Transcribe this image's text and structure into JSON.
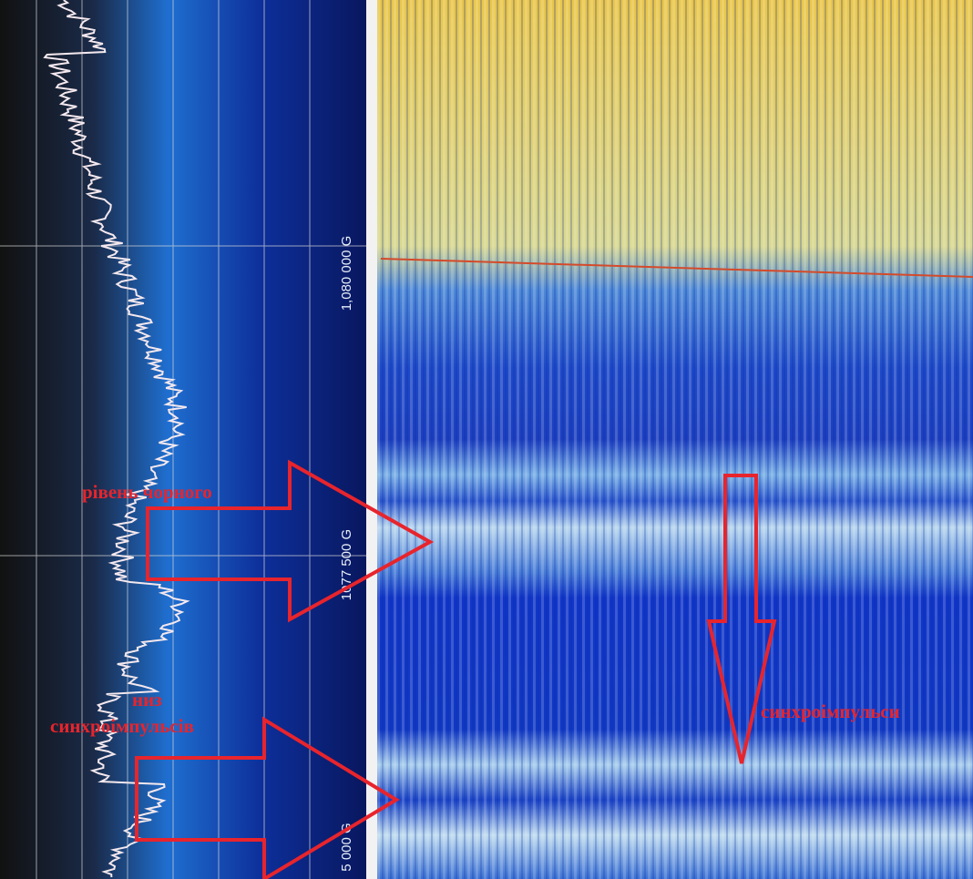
{
  "spectrum": {
    "axis_labels": [
      "1,080 000 G",
      "1077 500 G",
      "5 000 G"
    ]
  },
  "annotations": {
    "black_level": "рівень чорного",
    "sync_bottom": [
      "низ",
      "синхроімпульсів"
    ],
    "sync_pulses": "синхроімпульси"
  }
}
